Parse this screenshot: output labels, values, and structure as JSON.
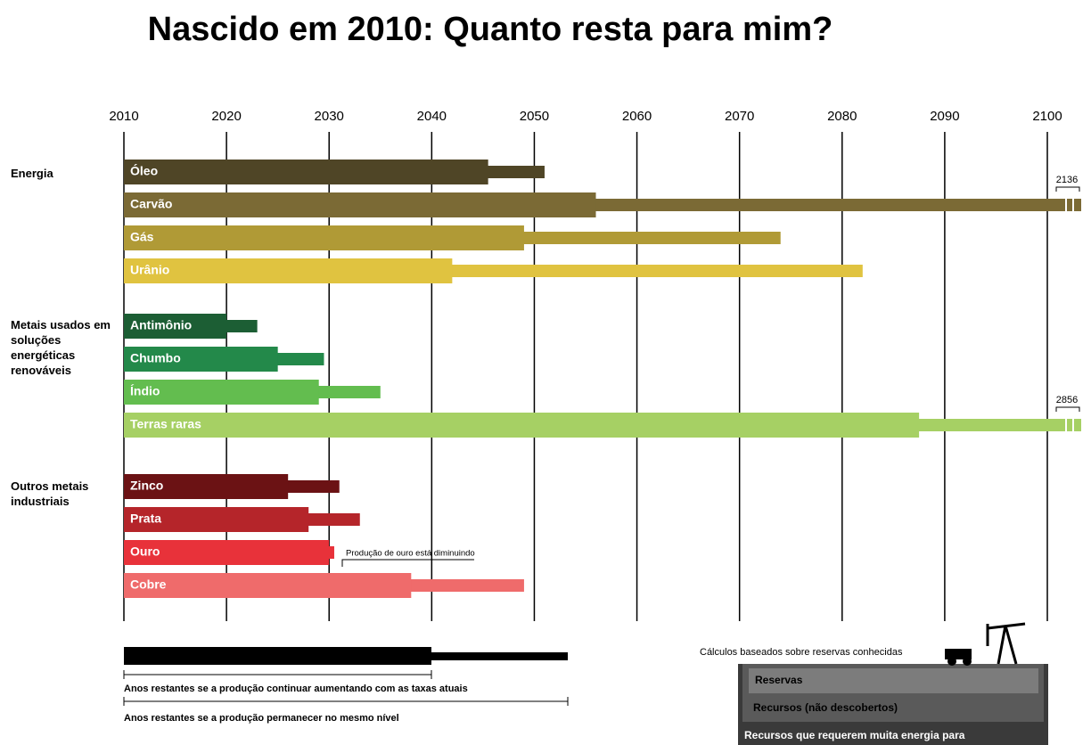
{
  "chart_data": {
    "type": "bar",
    "title": "Nascido em 2010: Quanto resta para mim?",
    "groups": [
      {
        "name": "Energia",
        "categories": [
          "Óleo",
          "Carvão",
          "Gás",
          "Urânio"
        ]
      },
      {
        "name": "Metais usados em soluções energéticas renováveis",
        "categories": [
          "Antimônio",
          "Chumbo",
          "Índio",
          "Terras raras"
        ]
      },
      {
        "name": "Outros metais industriais",
        "categories": [
          "Zinco",
          "Prata",
          "Ouro",
          "Cobre"
        ]
      }
    ],
    "colors": [
      "#4f4526",
      "#7b6a35",
      "#b09a36",
      "#e0c340",
      "#1c5e34",
      "#23894a",
      "#63bd4f",
      "#a6d064",
      "#6b1214",
      "#b5252a",
      "#e8323a",
      "#ef6b6b"
    ],
    "series": [
      {
        "name": "Anos restantes se a produção continuar aumentando com as taxas atuais",
        "color": "#000000",
        "values": [
          2045.5,
          2056,
          2049,
          2042,
          2020,
          2025,
          2029,
          2087.5,
          2026,
          2028,
          2030,
          2038
        ]
      },
      {
        "name": "Anos restantes se a produção permanecer no mesmo nível",
        "color": "#000000",
        "values": [
          2051,
          2136,
          2074,
          2082,
          2023,
          2029.5,
          2035,
          2856,
          2031,
          2033,
          2030.5,
          2049
        ]
      }
    ],
    "xlim": [
      2010,
      2103.3
    ],
    "xticks": [
      2010,
      2020,
      2030,
      2040,
      2050,
      2060,
      2070,
      2080,
      2090,
      2100
    ],
    "grid": true,
    "annotations": [
      "Produção de ouro está  diminuindo",
      "Cálculos baseados sobre reservas conhecidas"
    ],
    "resource_panel": [
      "Reservas",
      "Recursos (não descobertos)",
      "Recursos que requerem muita energia para"
    ]
  }
}
